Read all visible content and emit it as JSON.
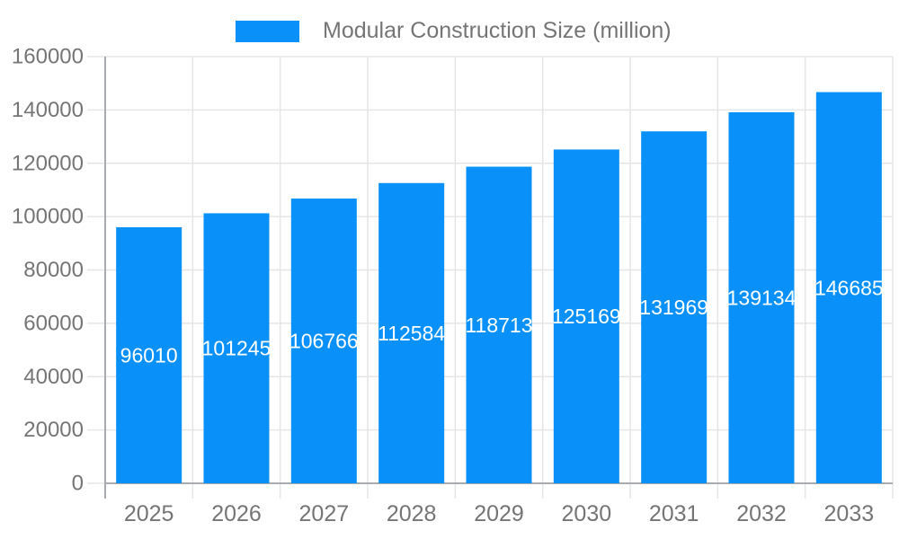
{
  "legend": {
    "label": "Modular Construction Size (million)",
    "swatch_color": "#0991f9"
  },
  "chart_data": {
    "type": "bar",
    "title": "Modular Construction Size (million)",
    "categories": [
      "2025",
      "2026",
      "2027",
      "2028",
      "2029",
      "2030",
      "2031",
      "2032",
      "2033"
    ],
    "series": [
      {
        "name": "Modular Construction Size (million)",
        "values": [
          96010,
          101245,
          106766,
          112584,
          118713,
          125169,
          131969,
          139134,
          146685
        ]
      }
    ],
    "xlabel": "",
    "ylabel": "",
    "ylim": [
      0,
      160000
    ],
    "y_ticks": [
      0,
      20000,
      40000,
      60000,
      80000,
      100000,
      120000,
      140000,
      160000
    ],
    "grid": true,
    "legend_position": "top-center",
    "data_labels": "inside-center",
    "colors": {
      "bar": "#0991f9",
      "bar_label_text": "#ffffff",
      "axis_line": "#a8abb0",
      "grid_line": "#e4e6e8",
      "tick_text": "#757575"
    }
  }
}
